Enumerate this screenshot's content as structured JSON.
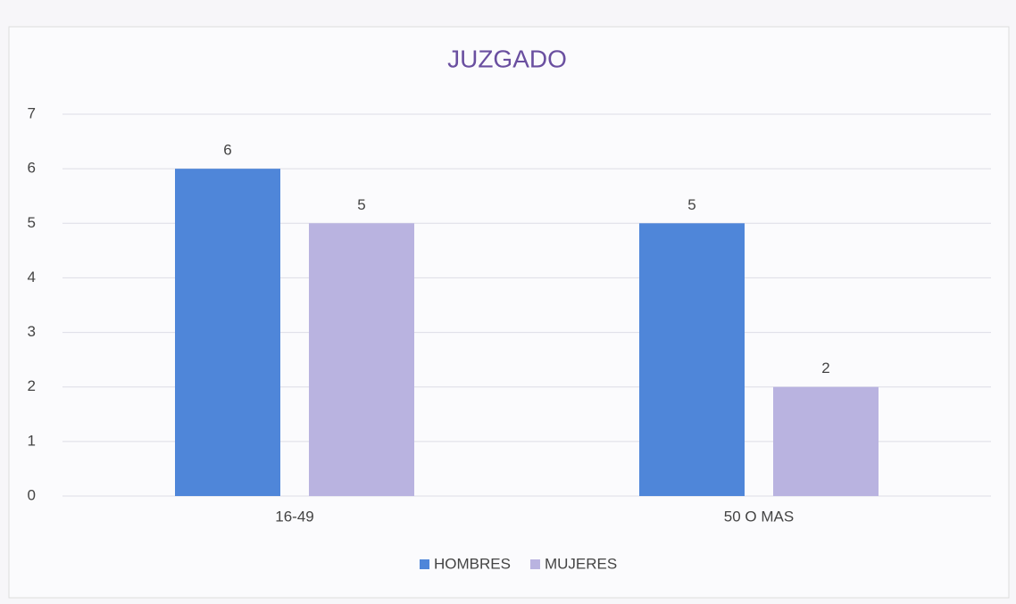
{
  "chart_data": {
    "type": "bar",
    "title": "JUZGADO",
    "categories": [
      "16-49",
      "50 O MAS"
    ],
    "series": [
      {
        "name": "HOMBRES",
        "color": "#4f86d9",
        "values": [
          6,
          5
        ]
      },
      {
        "name": "MUJERES",
        "color": "#b9b3e0",
        "values": [
          5,
          2
        ]
      }
    ],
    "ylim": [
      0,
      7
    ],
    "yticks": [
      0,
      1,
      2,
      3,
      4,
      5,
      6,
      7
    ],
    "grid": true,
    "legend": "bottom"
  }
}
